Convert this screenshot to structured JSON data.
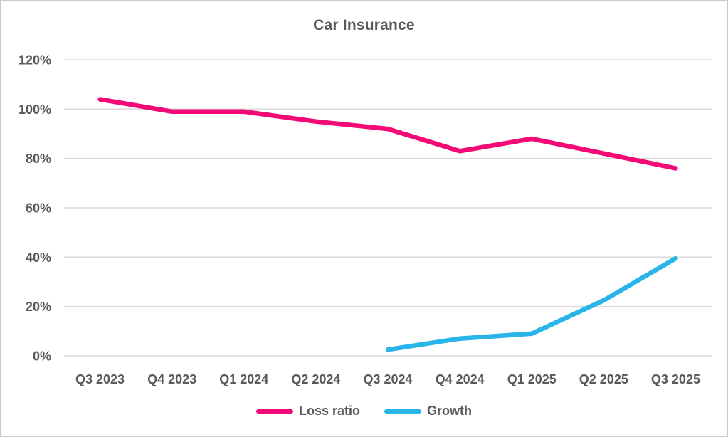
{
  "window": {
    "background_color": "#FFFFFF",
    "border_color": "#C9C9C9"
  },
  "chart_data": {
    "type": "line",
    "title": "Car Insurance",
    "categories": [
      "Q3 2023",
      "Q4 2023",
      "Q1 2024",
      "Q2 2024",
      "Q3 2024",
      "Q4 2024",
      "Q1 2025",
      "Q2 2025",
      "Q3 2025"
    ],
    "series": [
      {
        "name": "Loss ratio",
        "color": "#F40A76",
        "values": [
          104,
          99,
          99,
          95,
          92,
          83,
          88,
          82,
          76
        ]
      },
      {
        "name": "Growth",
        "color": "#29B5EA",
        "values": [
          null,
          null,
          null,
          null,
          2.5,
          7,
          9,
          22.5,
          39.5
        ]
      }
    ],
    "xlabel": "",
    "ylabel": "",
    "y_axis": {
      "min": 0,
      "max": 120,
      "step": 20,
      "unit": "%",
      "tick_labels": [
        "0%",
        "20%",
        "40%",
        "60%",
        "80%",
        "100%",
        "120%"
      ]
    },
    "grid": "horizontal",
    "gridline_color": "#D9D9D9",
    "text_color": "#595959",
    "legend_position": "bottom"
  }
}
